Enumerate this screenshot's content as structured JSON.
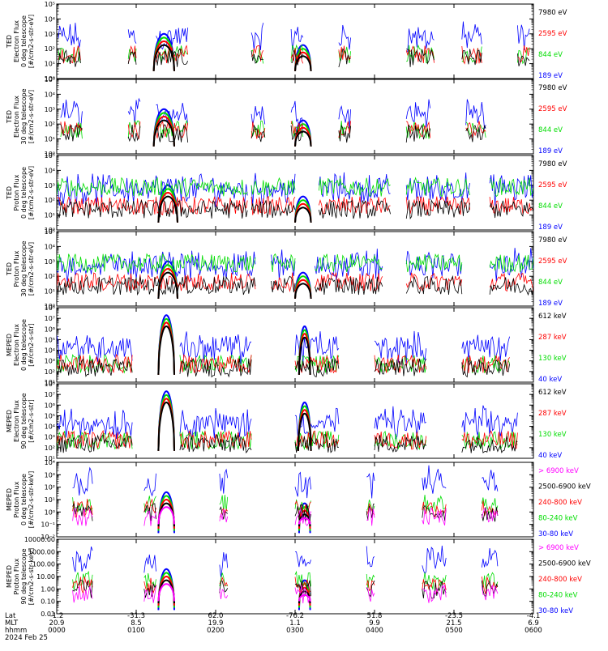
{
  "chart_data": {
    "type": "line",
    "x_axis": {
      "rows": [
        {
          "label": "Lat",
          "values": [
            "-1.2",
            "-31.3",
            "62.0",
            "-76.2",
            "51.8",
            "-23.5",
            "-4.1"
          ]
        },
        {
          "label": "MLT",
          "values": [
            "20.9",
            "8.5",
            "19.9",
            "1.1",
            "9.9",
            "21.5",
            "6.9"
          ]
        },
        {
          "label": "hhmm",
          "values": [
            "0000",
            "0100",
            "0200",
            "0300",
            "0400",
            "0500",
            "0600"
          ]
        }
      ],
      "date": "2024 Feb 25",
      "range_hours": [
        0,
        6
      ]
    },
    "panels": [
      {
        "ylabel": [
          "TED",
          "Electron Flux",
          "0 deg telescope",
          "[#/cm2-s-str-eV]"
        ],
        "yscale": "log",
        "ylim_exp": [
          0,
          5
        ],
        "ticks": [
          "10⁰",
          "10¹",
          "10²",
          "10³",
          "10⁴",
          "10⁵"
        ],
        "legend": [
          {
            "name": "7980 eV",
            "color": "#000000"
          },
          {
            "name": "2595 eV",
            "color": "#ff0000"
          },
          {
            "name": "844 eV",
            "color": "#00dd00"
          },
          {
            "name": "189 eV",
            "color": "#0000ff"
          }
        ]
      },
      {
        "ylabel": [
          "TED",
          "Electron Flux",
          "30 deg telescope",
          "[#/cm2-s-str-eV]"
        ],
        "yscale": "log",
        "ylim_exp": [
          0,
          5
        ],
        "ticks": [
          "10⁰",
          "10¹",
          "10²",
          "10³",
          "10⁴",
          "10⁵"
        ],
        "legend": [
          {
            "name": "7980 eV",
            "color": "#000000"
          },
          {
            "name": "2595 eV",
            "color": "#ff0000"
          },
          {
            "name": "844 eV",
            "color": "#00dd00"
          },
          {
            "name": "189 eV",
            "color": "#0000ff"
          }
        ]
      },
      {
        "ylabel": [
          "TED",
          "Proton Flux",
          "0 deg telescope",
          "[#/cm2-s-str-eV]"
        ],
        "yscale": "log",
        "ylim_exp": [
          0,
          5
        ],
        "ticks": [
          "10⁰",
          "10¹",
          "10²",
          "10³",
          "10⁴",
          "10⁵"
        ],
        "legend": [
          {
            "name": "7980 eV",
            "color": "#000000"
          },
          {
            "name": "2595 eV",
            "color": "#ff0000"
          },
          {
            "name": "844 eV",
            "color": "#00dd00"
          },
          {
            "name": "189 eV",
            "color": "#0000ff"
          }
        ]
      },
      {
        "ylabel": [
          "TED",
          "Proton Flux",
          "30 deg telescope",
          "[#/cm2-s-str-eV]"
        ],
        "yscale": "log",
        "ylim_exp": [
          0,
          5
        ],
        "ticks": [
          "10⁰",
          "10¹",
          "10²",
          "10³",
          "10⁴",
          "10⁵"
        ],
        "legend": [
          {
            "name": "7980 eV",
            "color": "#000000"
          },
          {
            "name": "2595 eV",
            "color": "#ff0000"
          },
          {
            "name": "844 eV",
            "color": "#00dd00"
          },
          {
            "name": "189 eV",
            "color": "#0000ff"
          }
        ]
      },
      {
        "ylabel": [
          "MEPED",
          "Electron Flux",
          "0 deg telescope",
          "[#/cm2-s-str]"
        ],
        "yscale": "log",
        "ylim_exp": [
          1,
          8
        ],
        "ticks": [
          "10¹",
          "10²",
          "10³",
          "10⁴",
          "10⁵",
          "10⁶",
          "10⁷",
          "10⁸"
        ],
        "legend": [
          {
            "name": "612 keV",
            "color": "#000000"
          },
          {
            "name": "287 keV",
            "color": "#ff0000"
          },
          {
            "name": "130 keV",
            "color": "#00dd00"
          },
          {
            "name": "40 keV",
            "color": "#0000ff"
          }
        ]
      },
      {
        "ylabel": [
          "MEPED",
          "Electron Flux",
          "90 deg telescope",
          "[#/cm2-s-str]"
        ],
        "yscale": "log",
        "ylim_exp": [
          1,
          8
        ],
        "ticks": [
          "10¹",
          "10²",
          "10³",
          "10⁴",
          "10⁵",
          "10⁶",
          "10⁷",
          "10⁸"
        ],
        "legend": [
          {
            "name": "612 keV",
            "color": "#000000"
          },
          {
            "name": "287 keV",
            "color": "#ff0000"
          },
          {
            "name": "130 keV",
            "color": "#00dd00"
          },
          {
            "name": "40 keV",
            "color": "#0000ff"
          }
        ]
      },
      {
        "ylabel": [
          "MEPED",
          "Proton Flux",
          "0 deg telescope",
          "[#/cm2-s-str-keV]"
        ],
        "yscale": "log",
        "ylim_exp": [
          -2,
          4
        ],
        "ticks": [
          "10⁻²",
          "10⁻¹",
          "10⁰",
          "10¹",
          "10²",
          "10³",
          "10⁴"
        ],
        "legend": [
          {
            "name": "> 6900 keV",
            "color": "#ff00ff"
          },
          {
            "name": "2500-6900 keV",
            "color": "#000000"
          },
          {
            "name": "240-800 keV",
            "color": "#ff0000"
          },
          {
            "name": "80-240 keV",
            "color": "#00dd00"
          },
          {
            "name": "30-80 keV",
            "color": "#0000ff"
          }
        ]
      },
      {
        "ylabel": [
          "MEPED",
          "Proton Flux",
          "90 deg telescope",
          "[#/cm2-s-str-keV]"
        ],
        "yscale": "log",
        "ylim_exp": [
          -2,
          4
        ],
        "ticks": [
          "0.01",
          "0.10",
          "1.00",
          "10.00",
          "100.00",
          "1000.00",
          "10000.00"
        ],
        "legend": [
          {
            "name": "> 6900 keV",
            "color": "#ff00ff"
          },
          {
            "name": "2500-6900 keV",
            "color": "#000000"
          },
          {
            "name": "240-800 keV",
            "color": "#ff0000"
          },
          {
            "name": "80-240 keV",
            "color": "#00dd00"
          },
          {
            "name": "30-80 keV",
            "color": "#0000ff"
          }
        ]
      }
    ]
  }
}
